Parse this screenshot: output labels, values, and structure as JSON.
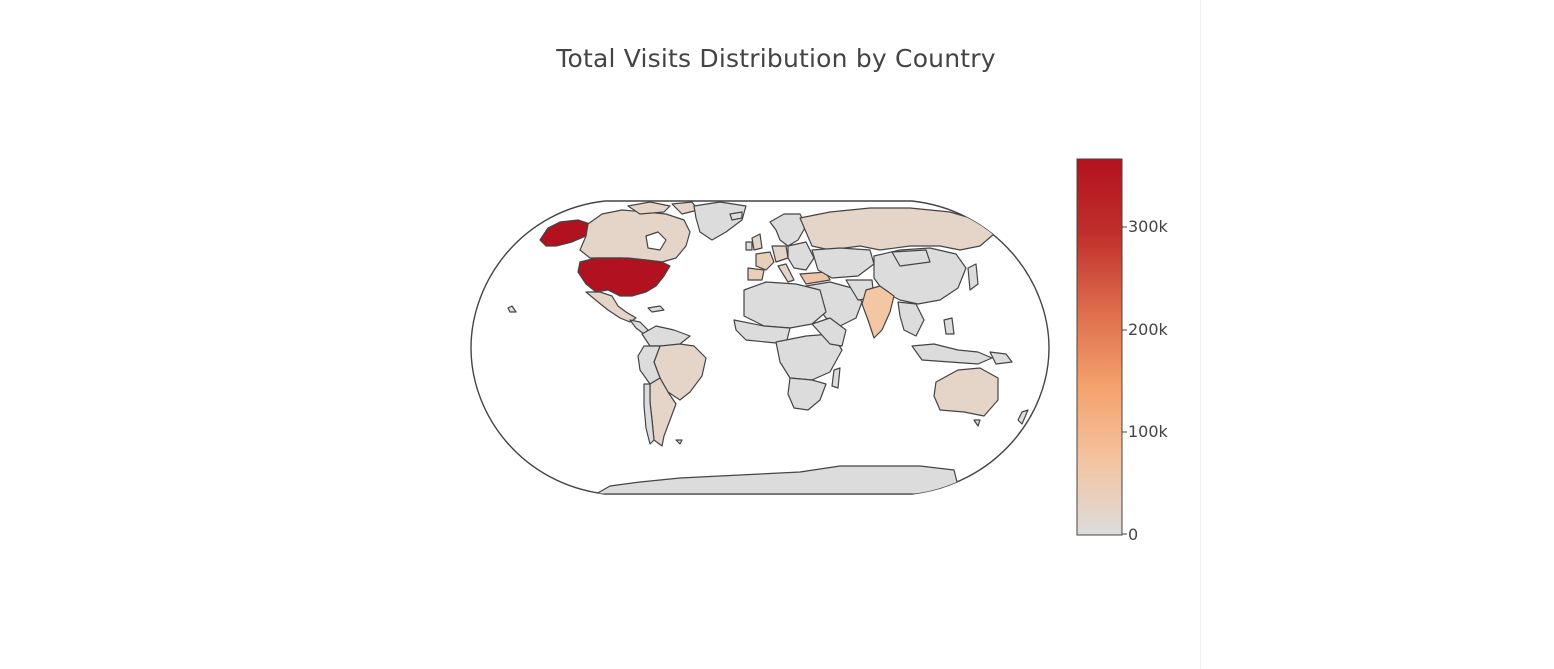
{
  "chart_data": {
    "type": "choropleth",
    "title": "Total Visits Distribution by Country",
    "projection": "robinson",
    "colorscale": [
      "#dcdcdc",
      "#f4c39f",
      "#f4a06a",
      "#dd6b4c",
      "#c0302b",
      "#b2121f"
    ],
    "colorbar": {
      "range": [
        0,
        362000
      ],
      "tickvals": [
        0,
        100000,
        200000,
        300000
      ],
      "ticktext": [
        "0",
        "100k",
        "200k",
        "300k"
      ]
    },
    "locations": [
      {
        "country": "United States",
        "value": 362000
      },
      {
        "country": "India",
        "value": 60000
      },
      {
        "country": "Canada",
        "value": 12000
      },
      {
        "country": "Brazil",
        "value": 10000
      },
      {
        "country": "Mexico",
        "value": 8000
      },
      {
        "country": "Russia",
        "value": 7000
      },
      {
        "country": "Australia",
        "value": 8000
      },
      {
        "country": "United Kingdom",
        "value": 15000
      },
      {
        "country": "Germany",
        "value": 12000
      },
      {
        "country": "France",
        "value": 9000
      },
      {
        "country": "Spain",
        "value": 9000
      },
      {
        "country": "Italy",
        "value": 7000
      },
      {
        "country": "Turkey",
        "value": 20000
      },
      {
        "country": "Argentina",
        "value": 3000
      }
    ]
  }
}
